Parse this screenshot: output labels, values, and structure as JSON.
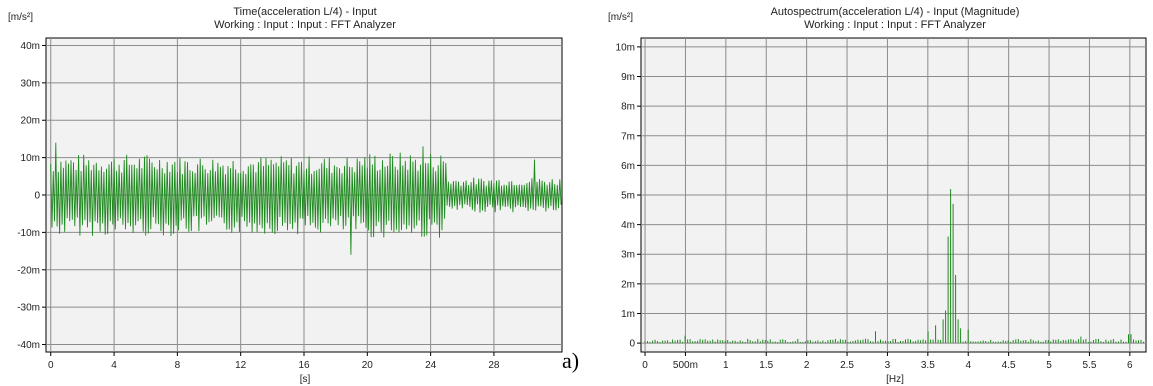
{
  "figure_label": "a)",
  "colors": {
    "plot_bg": "#f2f2f2",
    "grid": "#8c8c8c",
    "trace": "#1f8a1f",
    "frame": "#000000"
  },
  "chart_data": [
    {
      "type": "line",
      "title": "Time(acceleration L/4) - Input",
      "subtitle": "Working : Input : Input : FFT Analyzer",
      "ylabel": "[m/s²]",
      "xlabel": "[s]",
      "xlim": [
        -0.3,
        32.3
      ],
      "ylim": [
        -42,
        42
      ],
      "x_ticks": [
        0,
        4,
        8,
        12,
        16,
        20,
        24,
        28
      ],
      "x_tick_labels": [
        "0",
        "4",
        "8",
        "12",
        "16",
        "20",
        "24",
        "28"
      ],
      "y_ticks": [
        40,
        30,
        20,
        10,
        0,
        -10,
        -20,
        -30,
        -40
      ],
      "y_tick_labels": [
        "40m",
        "30m",
        "20m",
        "10m",
        "0",
        "-10m",
        "-20m",
        "-30m",
        "-40m"
      ],
      "grid": true,
      "signal": {
        "sample_dt_s": 0.04,
        "duration_s": 32.3,
        "segments": [
          {
            "t_start": 0.0,
            "t_end": 8.0,
            "amplitude": 10.5
          },
          {
            "t_start": 8.0,
            "t_end": 19.5,
            "amplitude": 10.0
          },
          {
            "t_start": 19.5,
            "t_end": 25.0,
            "amplitude": 11.0
          },
          {
            "t_start": 25.0,
            "t_end": 32.3,
            "amplitude": 4.5
          }
        ],
        "extremes": [
          {
            "t": 0.3,
            "value": 14
          },
          {
            "t": 0.5,
            "value": -14
          },
          {
            "t": 19.1,
            "value": 18.5
          },
          {
            "t": 18.9,
            "value": -16
          },
          {
            "t": 23.5,
            "value": 13
          },
          {
            "t": 30.6,
            "value": 9.5
          }
        ]
      }
    },
    {
      "type": "bar",
      "title": "Autospectrum(acceleration L/4) - Input (Magnitude)",
      "subtitle": "Working : Input : Input : FFT Analyzer",
      "ylabel": "[m/s²]",
      "xlabel": "[Hz]",
      "xlim": [
        -0.05,
        6.2
      ],
      "ylim": [
        -0.3,
        10.3
      ],
      "x_ticks": [
        0,
        0.5,
        1,
        1.5,
        2,
        2.5,
        3,
        3.5,
        4,
        4.5,
        5,
        5.5,
        6
      ],
      "x_tick_labels": [
        "0",
        "500m",
        "1",
        "1.5",
        "2",
        "2.5",
        "3",
        "3.5",
        "4",
        "4.5",
        "5",
        "5.5",
        "6"
      ],
      "y_ticks": [
        10,
        9,
        8,
        7,
        6,
        5,
        4,
        3,
        2,
        1,
        0
      ],
      "y_tick_labels": [
        "10m",
        "9m",
        "8m",
        "7m",
        "6m",
        "5m",
        "4m",
        "3m",
        "2m",
        "1m",
        "0"
      ],
      "grid": true,
      "bin_width_hz": 0.031,
      "baseline_level": 0.12,
      "peaks": [
        {
          "f": 0.5,
          "value": 0.25
        },
        {
          "f": 2.85,
          "value": 0.4
        },
        {
          "f": 3.5,
          "value": 0.4
        },
        {
          "f": 3.6,
          "value": 0.6
        },
        {
          "f": 3.68,
          "value": 0.8
        },
        {
          "f": 3.72,
          "value": 1.1
        },
        {
          "f": 3.76,
          "value": 3.6
        },
        {
          "f": 3.79,
          "value": 5.2
        },
        {
          "f": 3.82,
          "value": 4.7
        },
        {
          "f": 3.85,
          "value": 2.3
        },
        {
          "f": 3.88,
          "value": 0.8
        },
        {
          "f": 3.91,
          "value": 0.5
        },
        {
          "f": 4.0,
          "value": 0.45
        },
        {
          "f": 5.4,
          "value": 0.22
        },
        {
          "f": 6.0,
          "value": 0.3
        }
      ]
    }
  ]
}
